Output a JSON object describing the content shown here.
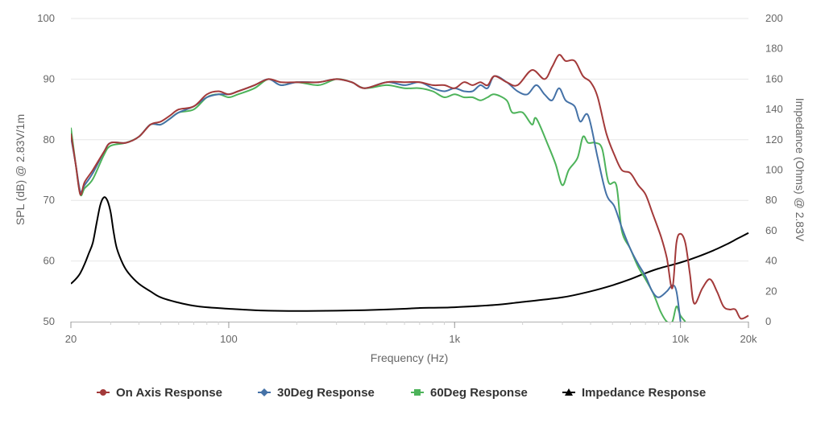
{
  "chart_data": {
    "type": "line",
    "xlabel": "Frequency (Hz)",
    "ylabel": "SPL (dB) @ 2.83V/1m",
    "y2label": "Impedance (Ohms) @ 2.83V",
    "x_scale": "log",
    "xlim": [
      20,
      20000
    ],
    "ylim": [
      50,
      100
    ],
    "y2lim": [
      0,
      200
    ],
    "x_ticks": [
      {
        "value": 20,
        "label": "20"
      },
      {
        "value": 100,
        "label": "100"
      },
      {
        "value": 1000,
        "label": "1k"
      },
      {
        "value": 10000,
        "label": "10k"
      },
      {
        "value": 20000,
        "label": "20k"
      }
    ],
    "y_ticks": [
      50,
      60,
      70,
      80,
      90,
      100
    ],
    "y2_ticks": [
      0,
      20,
      40,
      60,
      80,
      100,
      120,
      140,
      160,
      180,
      200
    ],
    "grid": "horizontal",
    "legend_position": "bottom",
    "series": [
      {
        "name": "On Axis Response",
        "color": "#a33a3a",
        "marker": "circle",
        "axis": "left",
        "points": [
          [
            20,
            81
          ],
          [
            21,
            76
          ],
          [
            22,
            71
          ],
          [
            23,
            73
          ],
          [
            25,
            75
          ],
          [
            28,
            78
          ],
          [
            30,
            79.5
          ],
          [
            35,
            79.5
          ],
          [
            40,
            80.5
          ],
          [
            45,
            82.5
          ],
          [
            50,
            83
          ],
          [
            55,
            84
          ],
          [
            60,
            85
          ],
          [
            70,
            85.5
          ],
          [
            80,
            87.5
          ],
          [
            90,
            88
          ],
          [
            100,
            87.5
          ],
          [
            110,
            88
          ],
          [
            130,
            89
          ],
          [
            150,
            90
          ],
          [
            170,
            89.5
          ],
          [
            200,
            89.5
          ],
          [
            250,
            89.5
          ],
          [
            300,
            90
          ],
          [
            350,
            89.5
          ],
          [
            400,
            88.5
          ],
          [
            500,
            89.5
          ],
          [
            600,
            89.5
          ],
          [
            700,
            89.5
          ],
          [
            800,
            89
          ],
          [
            900,
            89
          ],
          [
            1000,
            88.5
          ],
          [
            1100,
            89.5
          ],
          [
            1200,
            89
          ],
          [
            1300,
            89.5
          ],
          [
            1400,
            89
          ],
          [
            1500,
            90.5
          ],
          [
            1700,
            89.5
          ],
          [
            1900,
            89
          ],
          [
            2200,
            91.5
          ],
          [
            2500,
            90
          ],
          [
            2700,
            92
          ],
          [
            2900,
            94
          ],
          [
            3100,
            93
          ],
          [
            3400,
            93
          ],
          [
            3700,
            90.5
          ],
          [
            4000,
            89.5
          ],
          [
            4300,
            87
          ],
          [
            4700,
            81
          ],
          [
            5100,
            77.5
          ],
          [
            5500,
            75
          ],
          [
            6000,
            74.5
          ],
          [
            6500,
            72.5
          ],
          [
            7000,
            71
          ],
          [
            7500,
            68
          ],
          [
            8200,
            64
          ],
          [
            8700,
            60.5
          ],
          [
            9200,
            55.5
          ],
          [
            9600,
            63
          ],
          [
            10000,
            64.5
          ],
          [
            10500,
            63
          ],
          [
            11000,
            58
          ],
          [
            11500,
            53
          ],
          [
            12500,
            55.5
          ],
          [
            13500,
            57
          ],
          [
            14500,
            55
          ],
          [
            15500,
            52.5
          ],
          [
            16500,
            52
          ],
          [
            17500,
            52
          ],
          [
            18500,
            50.5
          ],
          [
            20000,
            51
          ]
        ]
      },
      {
        "name": "30Deg Response",
        "color": "#4572a7",
        "marker": "diamond",
        "axis": "left",
        "points": [
          [
            20,
            80.5
          ],
          [
            21,
            76
          ],
          [
            22,
            71.5
          ],
          [
            23,
            72.5
          ],
          [
            25,
            74.5
          ],
          [
            28,
            78
          ],
          [
            30,
            79.5
          ],
          [
            35,
            79.5
          ],
          [
            40,
            80.5
          ],
          [
            45,
            82.5
          ],
          [
            50,
            82.5
          ],
          [
            55,
            83.5
          ],
          [
            60,
            84.5
          ],
          [
            70,
            85.5
          ],
          [
            80,
            87
          ],
          [
            90,
            87.5
          ],
          [
            100,
            87.5
          ],
          [
            110,
            88
          ],
          [
            130,
            89
          ],
          [
            150,
            90
          ],
          [
            170,
            89
          ],
          [
            200,
            89.5
          ],
          [
            250,
            89.5
          ],
          [
            300,
            90
          ],
          [
            350,
            89.5
          ],
          [
            400,
            88.5
          ],
          [
            500,
            89.5
          ],
          [
            600,
            89
          ],
          [
            700,
            89.5
          ],
          [
            800,
            88.5
          ],
          [
            900,
            88
          ],
          [
            1000,
            88.5
          ],
          [
            1100,
            88
          ],
          [
            1200,
            88
          ],
          [
            1300,
            89
          ],
          [
            1400,
            88.5
          ],
          [
            1500,
            90.5
          ],
          [
            1700,
            89.5
          ],
          [
            1900,
            88
          ],
          [
            2100,
            87.5
          ],
          [
            2300,
            89
          ],
          [
            2500,
            87.5
          ],
          [
            2700,
            86.5
          ],
          [
            2900,
            88.5
          ],
          [
            3100,
            86.5
          ],
          [
            3400,
            85.5
          ],
          [
            3600,
            83
          ],
          [
            3900,
            84
          ],
          [
            4300,
            77
          ],
          [
            4700,
            71
          ],
          [
            5100,
            69
          ],
          [
            5500,
            65.5
          ],
          [
            6000,
            62
          ],
          [
            6500,
            59.5
          ],
          [
            7000,
            57.5
          ],
          [
            7500,
            55
          ],
          [
            8000,
            54
          ],
          [
            8700,
            55
          ],
          [
            9200,
            56
          ],
          [
            9600,
            55
          ],
          [
            10000,
            50
          ]
        ]
      },
      {
        "name": "60Deg Response",
        "color": "#4db35a",
        "marker": "square",
        "axis": "left",
        "points": [
          [
            20,
            82
          ],
          [
            21,
            76
          ],
          [
            22,
            71
          ],
          [
            23,
            72
          ],
          [
            25,
            73.5
          ],
          [
            28,
            77.5
          ],
          [
            30,
            79
          ],
          [
            35,
            79.5
          ],
          [
            40,
            80.5
          ],
          [
            45,
            82.5
          ],
          [
            50,
            82.5
          ],
          [
            55,
            83.5
          ],
          [
            60,
            84.5
          ],
          [
            70,
            85
          ],
          [
            80,
            87
          ],
          [
            90,
            87.5
          ],
          [
            100,
            87
          ],
          [
            110,
            87.5
          ],
          [
            130,
            88.5
          ],
          [
            150,
            90
          ],
          [
            170,
            89
          ],
          [
            200,
            89.5
          ],
          [
            250,
            89
          ],
          [
            300,
            90
          ],
          [
            350,
            89.5
          ],
          [
            400,
            88.5
          ],
          [
            500,
            89
          ],
          [
            600,
            88.5
          ],
          [
            700,
            88.5
          ],
          [
            800,
            88
          ],
          [
            900,
            87
          ],
          [
            1000,
            87.5
          ],
          [
            1100,
            87
          ],
          [
            1200,
            87
          ],
          [
            1300,
            86.5
          ],
          [
            1400,
            87
          ],
          [
            1500,
            87.5
          ],
          [
            1700,
            86.5
          ],
          [
            1800,
            84.5
          ],
          [
            2000,
            84.5
          ],
          [
            2200,
            82.5
          ],
          [
            2300,
            83.5
          ],
          [
            2600,
            79
          ],
          [
            2800,
            76
          ],
          [
            3000,
            72.5
          ],
          [
            3200,
            75
          ],
          [
            3500,
            77
          ],
          [
            3700,
            80.5
          ],
          [
            3900,
            79.5
          ],
          [
            4200,
            79.5
          ],
          [
            4500,
            78.5
          ],
          [
            4800,
            73
          ],
          [
            5200,
            72.5
          ],
          [
            5500,
            65
          ],
          [
            6000,
            62
          ],
          [
            6500,
            59
          ],
          [
            7000,
            57
          ],
          [
            7500,
            55
          ],
          [
            7800,
            53.5
          ],
          [
            8200,
            51.5
          ],
          [
            8700,
            50
          ],
          [
            9200,
            50
          ],
          [
            9600,
            52.5
          ],
          [
            10000,
            51
          ],
          [
            10500,
            50
          ]
        ]
      },
      {
        "name": "Impedance Response",
        "color": "#000000",
        "marker": "triangle",
        "axis": "right",
        "points": [
          [
            20,
            25
          ],
          [
            21,
            28
          ],
          [
            22,
            32
          ],
          [
            23,
            38
          ],
          [
            24,
            45
          ],
          [
            25,
            52
          ],
          [
            26,
            65
          ],
          [
            27,
            77
          ],
          [
            28,
            82
          ],
          [
            29,
            80
          ],
          [
            30,
            72
          ],
          [
            31,
            58
          ],
          [
            32,
            48
          ],
          [
            34,
            38
          ],
          [
            36,
            32
          ],
          [
            40,
            25
          ],
          [
            45,
            20
          ],
          [
            50,
            16
          ],
          [
            60,
            12.5
          ],
          [
            70,
            10.5
          ],
          [
            80,
            9.5
          ],
          [
            100,
            8.5
          ],
          [
            120,
            7.8
          ],
          [
            150,
            7.2
          ],
          [
            200,
            7
          ],
          [
            300,
            7.2
          ],
          [
            400,
            7.6
          ],
          [
            500,
            8
          ],
          [
            600,
            8.5
          ],
          [
            700,
            9
          ],
          [
            800,
            9.2
          ],
          [
            1000,
            9.5
          ],
          [
            1500,
            11
          ],
          [
            2000,
            13
          ],
          [
            3000,
            16
          ],
          [
            4000,
            20
          ],
          [
            5000,
            24
          ],
          [
            6000,
            28
          ],
          [
            7000,
            32
          ],
          [
            8000,
            35
          ],
          [
            10000,
            39
          ],
          [
            12000,
            43
          ],
          [
            14000,
            47
          ],
          [
            16000,
            51
          ],
          [
            18000,
            55
          ],
          [
            20000,
            58.5
          ]
        ]
      }
    ]
  }
}
